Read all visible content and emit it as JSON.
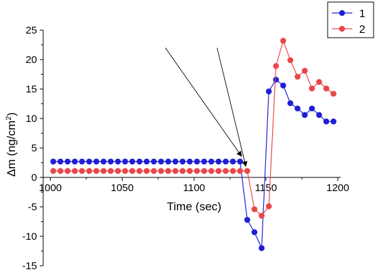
{
  "chart_data": {
    "type": "line",
    "title": "",
    "xlabel": "Time (sec)",
    "ylabel": "Δm (ng/cm²)",
    "ylabel_parts": {
      "base": "Δm (ng/cm",
      "sup": "2",
      "end": ")"
    },
    "xlim": [
      995,
      1202
    ],
    "ylim": [
      -15,
      25
    ],
    "xticks": [
      1000,
      1050,
      1100,
      1150,
      1200
    ],
    "yticks": [
      -15,
      -10,
      -5,
      0,
      5,
      10,
      15,
      20,
      25
    ],
    "grid": false,
    "legend_position": "top-right",
    "series": [
      {
        "name": "1",
        "color": "#1f1fd6",
        "x": [
          1002,
          1007,
          1012,
          1017,
          1022,
          1027,
          1032,
          1037,
          1042,
          1047,
          1052,
          1057,
          1062,
          1067,
          1072,
          1077,
          1082,
          1087,
          1092,
          1097,
          1102,
          1107,
          1112,
          1117,
          1122,
          1127,
          1132,
          1137,
          1142,
          1147,
          1152,
          1157,
          1162,
          1167,
          1172,
          1177,
          1182,
          1187,
          1192,
          1197
        ],
        "values": [
          2.7,
          2.7,
          2.7,
          2.7,
          2.7,
          2.7,
          2.7,
          2.7,
          2.7,
          2.7,
          2.7,
          2.7,
          2.7,
          2.7,
          2.7,
          2.7,
          2.7,
          2.7,
          2.7,
          2.7,
          2.7,
          2.7,
          2.7,
          2.7,
          2.7,
          2.7,
          2.7,
          -7.2,
          -9.3,
          -12.0,
          14.6,
          16.6,
          15.6,
          12.6,
          11.7,
          10.6,
          11.7,
          10.6,
          9.5,
          9.5
        ]
      },
      {
        "name": "2",
        "color": "#e8474a",
        "x": [
          1002,
          1007,
          1012,
          1017,
          1022,
          1027,
          1032,
          1037,
          1042,
          1047,
          1052,
          1057,
          1062,
          1067,
          1072,
          1077,
          1082,
          1087,
          1092,
          1097,
          1102,
          1107,
          1112,
          1117,
          1122,
          1127,
          1132,
          1137,
          1142,
          1147,
          1152,
          1157,
          1162,
          1167,
          1172,
          1177,
          1182,
          1187,
          1192,
          1197
        ],
        "values": [
          1.1,
          1.1,
          1.1,
          1.1,
          1.1,
          1.1,
          1.1,
          1.1,
          1.1,
          1.1,
          1.1,
          1.1,
          1.1,
          1.1,
          1.1,
          1.1,
          1.1,
          1.1,
          1.1,
          1.1,
          1.1,
          1.1,
          1.1,
          1.1,
          1.1,
          1.1,
          1.1,
          1.1,
          -5.4,
          -6.5,
          -4.9,
          18.9,
          23.2,
          19.9,
          17.1,
          18.1,
          15.1,
          16.2,
          15.1,
          14.2
        ]
      }
    ],
    "annotations": [
      {
        "type": "arrow",
        "from": [
          1080,
          22
        ],
        "to": [
          1133,
          3.6
        ]
      },
      {
        "type": "arrow",
        "from": [
          1116,
          22
        ],
        "to": [
          1136,
          1.9
        ]
      }
    ]
  }
}
